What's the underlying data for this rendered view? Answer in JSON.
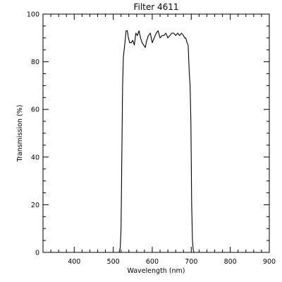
{
  "chart_data": {
    "type": "line",
    "title": "Filter 4611",
    "xlabel": "Wavelength (nm)",
    "ylabel": "Transmission (%)",
    "xlim": [
      320,
      900
    ],
    "ylim": [
      0,
      100
    ],
    "x_ticks": [
      400,
      500,
      600,
      700,
      800,
      900
    ],
    "y_ticks": [
      0,
      20,
      40,
      60,
      80,
      100
    ],
    "grid": false,
    "line_color": "#000000",
    "series": [
      {
        "x": [
          320,
          515,
          518,
          520,
          522,
          524,
          526,
          528,
          530,
          533,
          536,
          539,
          542,
          546,
          550,
          554,
          558,
          562,
          566,
          570,
          574,
          578,
          582,
          586,
          590,
          595,
          600,
          605,
          610,
          615,
          620,
          625,
          630,
          635,
          640,
          645,
          650,
          655,
          660,
          665,
          670,
          675,
          680,
          683,
          686,
          689,
          692,
          695,
          697,
          699,
          701,
          703,
          705,
          707,
          710,
          715,
          900
        ],
        "y": [
          0,
          0,
          2,
          10,
          40,
          70,
          82,
          85,
          88,
          93,
          93,
          90,
          88,
          88,
          89,
          87,
          92,
          91,
          93,
          90,
          88,
          87,
          86,
          89,
          91,
          92,
          88,
          90,
          92,
          93,
          90,
          91,
          91,
          92,
          90,
          91,
          92,
          92,
          91,
          92,
          91,
          92,
          91,
          90,
          90,
          88,
          87,
          75,
          70,
          55,
          20,
          5,
          1,
          0,
          0,
          0,
          0
        ]
      }
    ]
  }
}
